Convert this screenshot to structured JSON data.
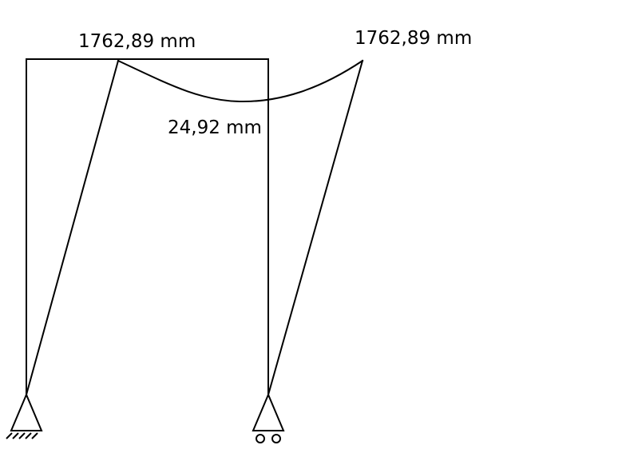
{
  "diagram": {
    "labels": {
      "left_top_deflection": "1762,89 mm",
      "right_top_deflection": "1762,89 mm",
      "beam_mid_deflection": "24,92 mm"
    },
    "supports": {
      "left": "pinned",
      "right": "roller"
    },
    "colors": {
      "stroke": "#000000",
      "background": "#ffffff"
    }
  }
}
